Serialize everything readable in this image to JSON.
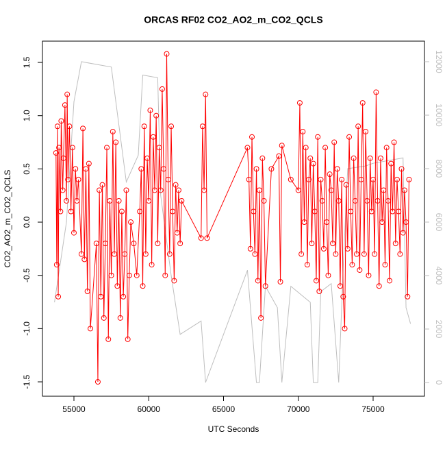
{
  "chart_data": {
    "type": "line",
    "title": "ORCAS RF02 CO2_AO2_m_CO2_QCLS",
    "xlabel": "UTC Seconds",
    "ylabel": "CO2_AO2_m_CO2_QCLS",
    "xlim": [
      52895,
      78432
    ],
    "ylim": [
      -1.635,
      1.7
    ],
    "y2lim": [
      -513,
      12769
    ],
    "xticks": [
      55000,
      60000,
      65000,
      70000,
      75000
    ],
    "yticks": [
      -1.5,
      {
        "value": -1,
        "label": "-1.0"
      },
      -0.5,
      {
        "value": 0,
        "label": "0.0"
      },
      0.5,
      {
        "value": 1,
        "label": "1.0"
      },
      1.5
    ],
    "y2ticks": [
      0,
      2000,
      4000,
      6000,
      8000,
      10000,
      12000
    ],
    "series": [
      {
        "color": "#bebebe",
        "axis": "y2",
        "x": [
          53700,
          54500,
          55000,
          55500,
          57500,
          58500,
          59300,
          59600,
          60600,
          60800,
          61500,
          62100,
          63500,
          63800,
          66600,
          67200,
          67400,
          67800,
          68600,
          68900,
          69500,
          70800,
          71000,
          71300,
          71500,
          72200,
          72700,
          73000,
          73300,
          74500,
          75000,
          77000,
          77200,
          77500
        ],
        "values": [
          3000,
          6000,
          10500,
          12000,
          11800,
          7500,
          8500,
          11500,
          11400,
          7000,
          4000,
          1800,
          2300,
          0,
          4200,
          0,
          0,
          3600,
          2800,
          0,
          3600,
          3000,
          0,
          0,
          3400,
          3700,
          0,
          4300,
          8000,
          8100,
          8200,
          8400,
          2800,
          2200
        ]
      },
      {
        "color": "#ff0000",
        "x": [
          53800,
          53850,
          53900,
          53950,
          54000,
          54100,
          54150,
          54250,
          54300,
          54400,
          54500,
          54550,
          54600,
          54700,
          54800,
          54900,
          55000,
          55100,
          55200,
          55300,
          55500,
          55600,
          55700,
          55800,
          55900,
          56000,
          56100,
          56500,
          56600,
          56700,
          56800,
          56900,
          57000,
          57100,
          57200,
          57300,
          57400,
          57500,
          57600,
          57700,
          57800,
          57900,
          58000,
          58100,
          58200,
          58300,
          58400,
          58500,
          58600,
          58700,
          58800,
          59000,
          59200,
          59400,
          59500,
          59600,
          59700,
          59800,
          59900,
          60000,
          60100,
          60200,
          60300,
          60400,
          60500,
          60600,
          60700,
          60800,
          60900,
          61000,
          61100,
          61200,
          61300,
          61400,
          61500,
          61600,
          61700,
          61800,
          61900,
          62000,
          62100,
          62200,
          63500,
          63600,
          63700,
          63800,
          63900,
          66600,
          66700,
          66800,
          66900,
          67000,
          67100,
          67200,
          67300,
          67400,
          67500,
          67600,
          67700,
          67800,
          68200,
          68700,
          68800,
          68900,
          69500,
          70000,
          70100,
          70200,
          70300,
          70400,
          70500,
          70600,
          70700,
          70800,
          70900,
          71000,
          71100,
          71200,
          71300,
          71400,
          71500,
          71600,
          71700,
          71800,
          71900,
          72000,
          72100,
          72200,
          72300,
          72400,
          72500,
          72600,
          72700,
          72800,
          72900,
          73000,
          73100,
          73200,
          73300,
          73400,
          73500,
          73600,
          73700,
          73800,
          73900,
          74000,
          74100,
          74200,
          74300,
          74400,
          74500,
          74600,
          74700,
          74800,
          74900,
          75000,
          75100,
          75200,
          75300,
          75400,
          75500,
          75600,
          75700,
          75800,
          75900,
          76000,
          76100,
          76200,
          76300,
          76400,
          76500,
          76600,
          76700,
          76800,
          76900,
          77000,
          77100,
          77200,
          77300,
          77400
        ],
        "values": [
          0.65,
          -0.4,
          0.9,
          -0.7,
          0.7,
          0.1,
          0.95,
          0.3,
          0.6,
          1.1,
          0.2,
          1.2,
          0.4,
          0.9,
          0.1,
          0.7,
          -0.1,
          0.5,
          0.2,
          0.4,
          -0.3,
          0.88,
          -0.35,
          0.5,
          -0.65,
          0.55,
          -1.0,
          -0.2,
          -1.5,
          0.3,
          -0.7,
          0.35,
          -0.9,
          -0.2,
          0.7,
          -1.1,
          0.2,
          -0.5,
          0.85,
          -0.3,
          0.75,
          -0.6,
          0.2,
          -0.9,
          0.1,
          -0.7,
          -0.3,
          0.3,
          -1.1,
          -0.5,
          0.0,
          -0.2,
          -0.5,
          0.1,
          0.5,
          -0.6,
          0.9,
          -0.3,
          0.6,
          0.2,
          1.05,
          -0.4,
          0.8,
          0.3,
          1.0,
          -0.2,
          0.7,
          0.3,
          1.25,
          0.5,
          -0.5,
          1.58,
          0.4,
          -0.3,
          0.9,
          0.1,
          -0.55,
          0.35,
          -0.1,
          0.3,
          -0.2,
          0.2,
          -0.15,
          0.9,
          0.3,
          1.2,
          -0.15,
          0.7,
          0.4,
          -0.25,
          0.8,
          0.1,
          -0.3,
          0.5,
          -0.55,
          0.3,
          -0.9,
          0.6,
          0.2,
          -0.6,
          0.5,
          0.62,
          -0.56,
          0.72,
          0.4,
          0.3,
          1.12,
          -0.3,
          0.85,
          0.0,
          0.7,
          -0.4,
          0.4,
          0.6,
          -0.2,
          0.55,
          0.1,
          -0.55,
          0.8,
          -0.65,
          0.4,
          0.2,
          -0.25,
          0.7,
          0.0,
          -0.5,
          0.45,
          0.3,
          -0.2,
          0.75,
          -0.3,
          0.5,
          0.2,
          -0.6,
          0.4,
          -0.7,
          -1.0,
          0.35,
          -0.25,
          0.8,
          0.1,
          -0.4,
          0.6,
          0.2,
          -0.3,
          0.9,
          -0.45,
          0.4,
          1.12,
          -0.3,
          0.85,
          0.2,
          -0.5,
          0.6,
          0.1,
          0.4,
          -0.3,
          1.22,
          0.2,
          -0.6,
          0.6,
          0.0,
          0.3,
          -0.4,
          0.7,
          0.2,
          -0.55,
          0.55,
          0.1,
          0.75,
          -0.2,
          0.4,
          0.1,
          -0.3,
          0.5,
          -0.1,
          0.3,
          0.0,
          -0.7,
          0.4
        ]
      }
    ]
  }
}
